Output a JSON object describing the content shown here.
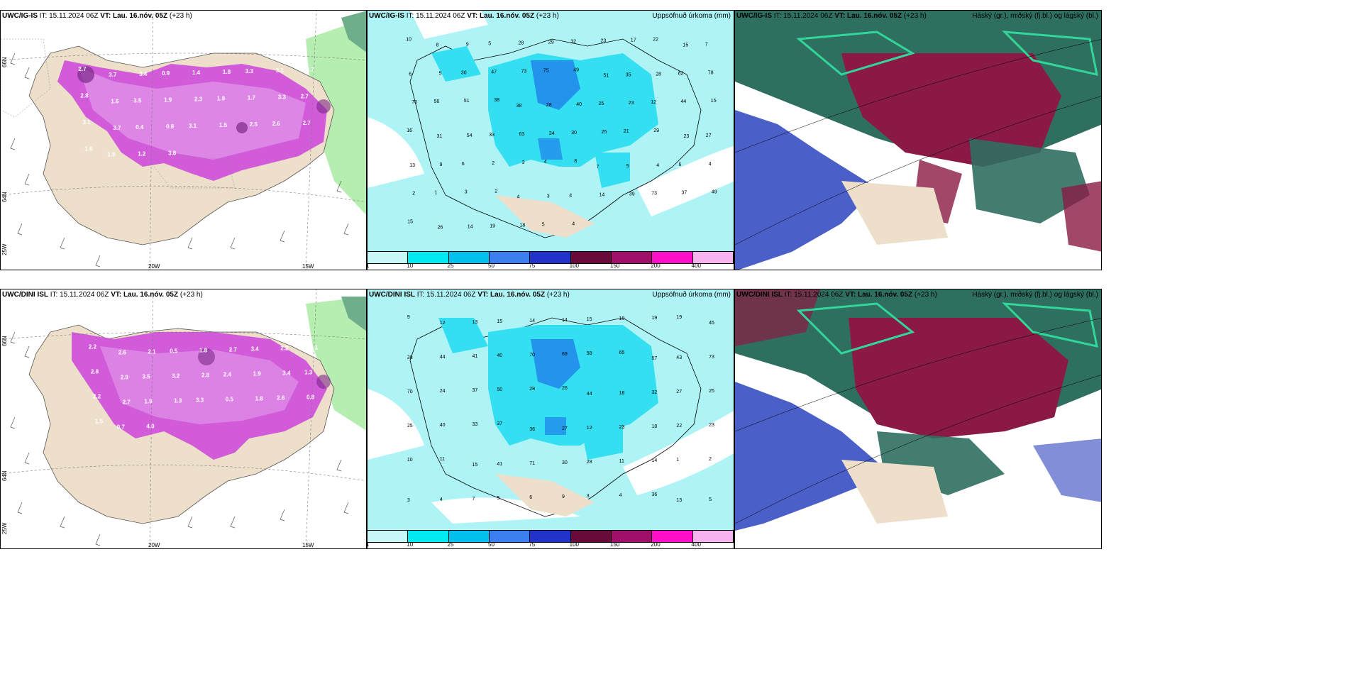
{
  "panels": {
    "p1": {
      "model": "UWC/IG-IS",
      "it_label": "IT:",
      "it": "15.11.2024 06Z",
      "vt_label": "VT:",
      "vt": "Lau. 16.nóv. 05Z",
      "lead": "(+23 h)",
      "right_title": ""
    },
    "p2": {
      "model": "UWC/IG-IS",
      "it_label": "IT:",
      "it": "15.11.2024 06Z",
      "vt_label": "VT:",
      "vt": "Lau. 16.nóv. 05Z",
      "lead": "(+23 h)",
      "right_title": "Uppsöfnuð úrkoma (mm)"
    },
    "p3": {
      "model": "UWC/IG-IS",
      "it_label": "IT:",
      "it": "15.11.2024 06Z",
      "vt_label": "VT:",
      "vt": "Lau. 16.nóv. 05Z",
      "lead": "(+23 h)",
      "right_title": "Háský (gr.), miðský (fj.bl.) og lágský (bl.)"
    },
    "p4": {
      "model": "UWC/DINI ISL",
      "it_label": "IT:",
      "it": "15.11.2024 06Z",
      "vt_label": "VT:",
      "vt": "Lau. 16.nóv. 05Z",
      "lead": "(+23 h)",
      "right_title": ""
    },
    "p5": {
      "model": "UWC/DINI ISL",
      "it_label": "IT:",
      "it": "15.11.2024 06Z",
      "vt_label": "VT:",
      "vt": "Lau. 16.nóv. 05Z",
      "lead": "(+23 h)",
      "right_title": "Uppsöfnuð úrkoma (mm)"
    },
    "p6": {
      "model": "UWC/DINI ISL",
      "it_label": "IT:",
      "it": "15.11.2024 06Z",
      "vt_label": "VT:",
      "vt": "Lau. 16.nóv. 05Z",
      "lead": "(+23 h)",
      "right_title": "Háský (gr.), miðský (fj.bl.) og lágský (bl.)"
    }
  },
  "axis_labels": {
    "lon_20w": "20W",
    "lon_15w": "15W",
    "lat_66n": "66N",
    "lat_64n": "64N",
    "lon_25w": "25W"
  },
  "colorbar": {
    "ticks": [
      "1",
      "10",
      "25",
      "50",
      "75",
      "100",
      "150",
      "200",
      "400"
    ],
    "colors": [
      "#c8f7f7",
      "#00eaf0",
      "#00c0ee",
      "#3d7ff0",
      "#2233cc",
      "#6a0a3a",
      "#a0106a",
      "#ff10c8",
      "#f7b3f0"
    ]
  },
  "snow_values_p1": [
    "2.7",
    "3.7",
    "3.4",
    "0.9",
    "1.4",
    "1.8",
    "3.3",
    "3.1",
    "3.7",
    "2.8",
    "1.6",
    "3.5",
    "1.9",
    "2.3",
    "1.9",
    "1.7",
    "3.3",
    "2.7",
    "3.1",
    "3.7",
    "0.4",
    "0.8",
    "3.1",
    "1.5",
    "2.5",
    "2.6",
    "2.7",
    "1.6",
    "1.8",
    "1.2",
    "3.8"
  ],
  "snow_values_p4": [
    "2.2",
    "2.6",
    "2.1",
    "0.5",
    "1.8",
    "2.7",
    "3.4",
    "2.2",
    "5.1",
    "2.8",
    "2.9",
    "3.5",
    "3.2",
    "2.8",
    "2.4",
    "1.9",
    "3.4",
    "1.3",
    "2.2",
    "2.7",
    "1.9",
    "1.3",
    "3.3",
    "0.5",
    "1.8",
    "2.6",
    "0.8",
    "1.5",
    "0.7",
    "4.0"
  ],
  "precip_values_p2": [
    "10",
    "8",
    "9",
    "5",
    "28",
    "29",
    "32",
    "23",
    "17",
    "22",
    "15",
    "7",
    "6",
    "5",
    "30",
    "47",
    "73",
    "75",
    "49",
    "51",
    "35",
    "28",
    "82",
    "78",
    "70",
    "56",
    "51",
    "38",
    "38",
    "28",
    "40",
    "25",
    "23",
    "12",
    "44",
    "15",
    "16",
    "31",
    "54",
    "33",
    "63",
    "34",
    "30",
    "25",
    "21",
    "29",
    "23",
    "27",
    "13",
    "9",
    "6",
    "2",
    "3",
    "4",
    "8",
    "7",
    "5",
    "4",
    "6",
    "4",
    "2",
    "1",
    "3",
    "2",
    "4",
    "3",
    "4",
    "14",
    "39",
    "73",
    "37",
    "49",
    "15",
    "26",
    "14",
    "19",
    "18",
    "5",
    "4"
  ],
  "precip_values_p5": [
    "9",
    "12",
    "13",
    "15",
    "14",
    "14",
    "15",
    "10",
    "19",
    "19",
    "45",
    "38",
    "44",
    "41",
    "40",
    "70",
    "69",
    "58",
    "65",
    "57",
    "43",
    "73",
    "70",
    "24",
    "37",
    "50",
    "28",
    "26",
    "44",
    "18",
    "32",
    "27",
    "25",
    "25",
    "40",
    "33",
    "37",
    "36",
    "27",
    "12",
    "23",
    "18",
    "22",
    "23",
    "10",
    "11",
    "15",
    "41",
    "71",
    "30",
    "28",
    "11",
    "14",
    "1",
    "2",
    "3",
    "4",
    "7",
    "5",
    "6",
    "9",
    "3",
    "4",
    "36",
    "13",
    "5"
  ],
  "map_colors": {
    "land": "#eddfc9",
    "snow_light": "#e4a3ee",
    "snow_mid": "#cc44dd",
    "snow_dark": "#7b2a8a",
    "precip_light": "#aef4f6",
    "precip_mid": "#33dff0",
    "precip_dark": "#1f7fea",
    "cloud_high": "#8a1a45",
    "cloud_mid": "#4b5fc9",
    "cloud_low": "#2f6f60",
    "cloud_green": "#31d69a",
    "sea": "#ffffff",
    "green_wash": "#b6edb0"
  }
}
